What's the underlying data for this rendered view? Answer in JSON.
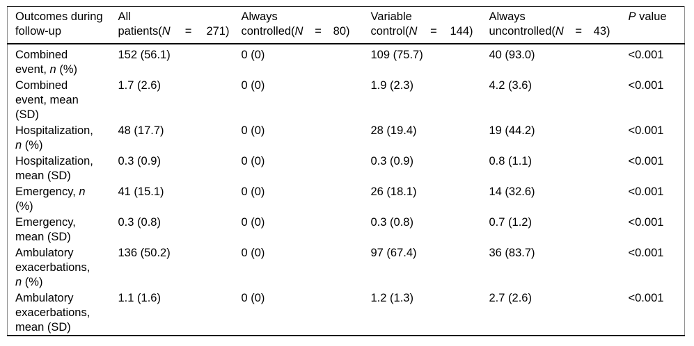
{
  "table": {
    "header": {
      "col1": {
        "text": "Outcomes during\nfollow-up"
      },
      "col2": {
        "line1": "All",
        "pre": "patients(",
        "nvar": "N",
        "eq": "=",
        "num": "271)"
      },
      "col3": {
        "line1": "Always",
        "pre": "controlled(",
        "nvar": "N",
        "eq": "=",
        "num": "80)"
      },
      "col4": {
        "line1": "Variable",
        "pre": "control(",
        "nvar": "N",
        "eq": "=",
        "num": "144)"
      },
      "col5": {
        "line1": "Always",
        "pre": "uncontrolled(",
        "nvar": "N",
        "eq": "=",
        "num": "43)"
      },
      "col6": {
        "pvar": "P",
        "rest": " value"
      }
    },
    "rows": [
      {
        "label_pre": "Combined\nevent, ",
        "label_it": "n",
        "label_post": " (%)",
        "all": "152 (56.1)",
        "controlled": "0 (0)",
        "variable": "109 (75.7)",
        "uncontrolled": "40 (93.0)",
        "p": "<0.001"
      },
      {
        "label_pre": "Combined\nevent, mean\n(SD)",
        "label_it": "",
        "label_post": "",
        "all": "1.7 (2.6)",
        "controlled": "0 (0)",
        "variable": "1.9 (2.3)",
        "uncontrolled": "4.2 (3.6)",
        "p": "<0.001"
      },
      {
        "label_pre": "Hospitalization,\n",
        "label_it": "n",
        "label_post": " (%)",
        "all": "48 (17.7)",
        "controlled": "0 (0)",
        "variable": "28 (19.4)",
        "uncontrolled": "19 (44.2)",
        "p": "<0.001"
      },
      {
        "label_pre": "Hospitalization,\nmean (SD)",
        "label_it": "",
        "label_post": "",
        "all": "0.3 (0.9)",
        "controlled": "0 (0)",
        "variable": "0.3 (0.9)",
        "uncontrolled": "0.8 (1.1)",
        "p": "<0.001"
      },
      {
        "label_pre": "Emergency, ",
        "label_it": "n",
        "label_post": "\n(%)",
        "all": "41 (15.1)",
        "controlled": "0 (0)",
        "variable": "26 (18.1)",
        "uncontrolled": "14 (32.6)",
        "p": "<0.001"
      },
      {
        "label_pre": "Emergency,\nmean (SD)",
        "label_it": "",
        "label_post": "",
        "all": "0.3 (0.8)",
        "controlled": "0 (0)",
        "variable": "0.3 (0.8)",
        "uncontrolled": "0.7 (1.2)",
        "p": "<0.001"
      },
      {
        "label_pre": "Ambulatory\nexacerbations,\n",
        "label_it": "n",
        "label_post": " (%)",
        "all": "136 (50.2)",
        "controlled": "0 (0)",
        "variable": "97 (67.4)",
        "uncontrolled": "36 (83.7)",
        "p": "<0.001"
      },
      {
        "label_pre": "Ambulatory\nexacerbations,\nmean (SD)",
        "label_it": "",
        "label_post": "",
        "all": "1.1 (1.6)",
        "controlled": "0 (0)",
        "variable": "1.2 (1.3)",
        "uncontrolled": "2.7 (2.6)",
        "p": "<0.001"
      }
    ]
  }
}
